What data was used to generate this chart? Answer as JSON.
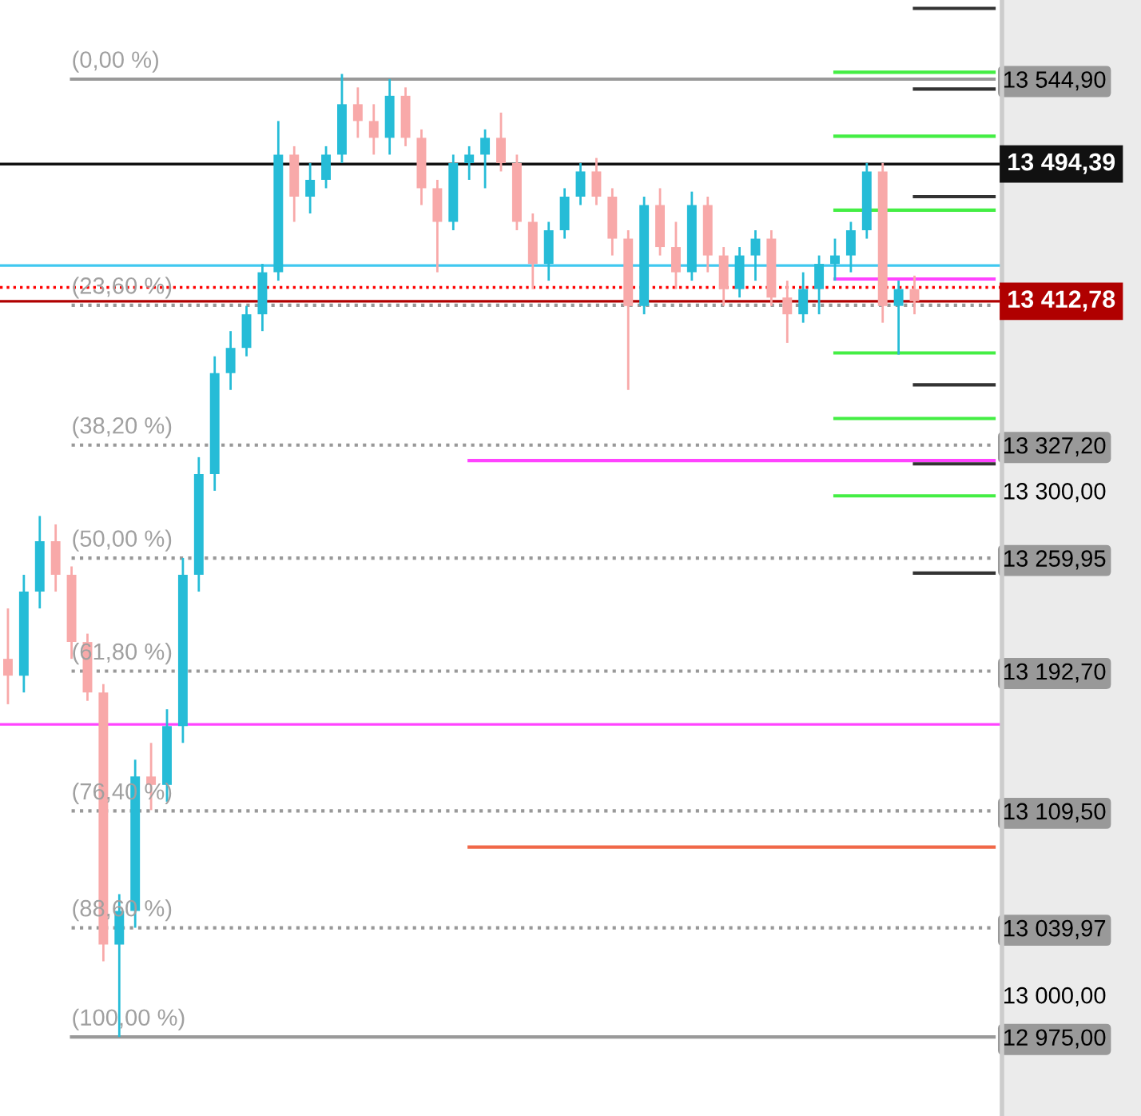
{
  "chart_data": {
    "type": "candlestick",
    "categories": [
      null,
      null,
      null,
      null,
      null,
      null,
      null,
      null,
      null,
      null,
      null,
      null,
      null,
      null,
      null,
      null,
      null,
      null,
      null,
      null,
      null,
      null,
      null,
      null,
      null,
      null,
      null,
      null,
      null,
      null,
      null,
      null,
      null,
      null,
      null,
      null,
      null,
      null,
      null,
      null,
      null,
      null,
      null,
      null,
      null,
      null,
      null,
      null,
      null,
      null,
      null,
      null,
      null,
      null,
      null,
      null,
      null,
      null,
      null,
      null,
      null,
      null,
      null
    ],
    "ohlc": [
      [
        13200,
        13230,
        13173,
        13190
      ],
      [
        13190,
        13250,
        13180,
        13240
      ],
      [
        13240,
        13285,
        13230,
        13270
      ],
      [
        13270,
        13280,
        13240,
        13250
      ],
      [
        13250,
        13255,
        13200,
        13210
      ],
      [
        13210,
        13215,
        13175,
        13180
      ],
      [
        13180,
        13185,
        13020,
        13030
      ],
      [
        13030,
        13060,
        12975,
        13050
      ],
      [
        13050,
        13140,
        13040,
        13130
      ],
      [
        13130,
        13150,
        13110,
        13125
      ],
      [
        13125,
        13170,
        13115,
        13160
      ],
      [
        13160,
        13260,
        13150,
        13250
      ],
      [
        13250,
        13320,
        13240,
        13310
      ],
      [
        13310,
        13380,
        13300,
        13370
      ],
      [
        13370,
        13395,
        13360,
        13385
      ],
      [
        13385,
        13410,
        13380,
        13405
      ],
      [
        13405,
        13435,
        13395,
        13430
      ],
      [
        13430,
        13520,
        13425,
        13500
      ],
      [
        13500,
        13505,
        13460,
        13475
      ],
      [
        13475,
        13495,
        13465,
        13485
      ],
      [
        13485,
        13505,
        13480,
        13500
      ],
      [
        13500,
        13548,
        13495,
        13530
      ],
      [
        13530,
        13540,
        13510,
        13520
      ],
      [
        13520,
        13530,
        13500,
        13510
      ],
      [
        13510,
        13545,
        13500,
        13535
      ],
      [
        13535,
        13540,
        13505,
        13510
      ],
      [
        13510,
        13515,
        13470,
        13480
      ],
      [
        13480,
        13485,
        13430,
        13460
      ],
      [
        13460,
        13500,
        13455,
        13495
      ],
      [
        13495,
        13505,
        13485,
        13500
      ],
      [
        13500,
        13515,
        13480,
        13510
      ],
      [
        13510,
        13525,
        13490,
        13495
      ],
      [
        13495,
        13500,
        13455,
        13460
      ],
      [
        13460,
        13465,
        13420,
        13435
      ],
      [
        13435,
        13460,
        13425,
        13455
      ],
      [
        13455,
        13480,
        13450,
        13475
      ],
      [
        13475,
        13495,
        13470,
        13490
      ],
      [
        13490,
        13498,
        13470,
        13475
      ],
      [
        13475,
        13480,
        13440,
        13450
      ],
      [
        13450,
        13455,
        13360,
        13410
      ],
      [
        13410,
        13475,
        13405,
        13470
      ],
      [
        13470,
        13480,
        13440,
        13445
      ],
      [
        13445,
        13460,
        13420,
        13430
      ],
      [
        13430,
        13478,
        13425,
        13470
      ],
      [
        13470,
        13475,
        13430,
        13440
      ],
      [
        13440,
        13445,
        13410,
        13420
      ],
      [
        13420,
        13445,
        13415,
        13440
      ],
      [
        13440,
        13455,
        13425,
        13450
      ],
      [
        13450,
        13455,
        13410,
        13415
      ],
      [
        13415,
        13425,
        13388,
        13405
      ],
      [
        13405,
        13430,
        13400,
        13420
      ],
      [
        13420,
        13440,
        13405,
        13435
      ],
      [
        13435,
        13450,
        13425,
        13440
      ],
      [
        13440,
        13460,
        13430,
        13455
      ],
      [
        13455,
        13495,
        13450,
        13490
      ],
      [
        13490,
        13495,
        13400,
        13410
      ],
      [
        13410,
        13425,
        13381,
        13420
      ],
      [
        13420,
        13428,
        13405,
        13412.78
      ],
      null,
      null,
      null,
      null,
      null
    ],
    "colors": [
      "#f8a9a9",
      "#26bcd7",
      "#26bcd7",
      "#f8a9a9",
      "#f8a9a9",
      "#f8a9a9",
      "#f8a9a9",
      "#26bcd7",
      "#26bcd7",
      "#f8a9a9",
      "#26bcd7",
      "#26bcd7",
      "#26bcd7",
      "#26bcd7",
      "#26bcd7",
      "#26bcd7",
      "#26bcd7",
      "#26bcd7",
      "#f8a9a9",
      "#26bcd7",
      "#26bcd7",
      "#26bcd7",
      "#f8a9a9",
      "#f8a9a9",
      "#26bcd7",
      "#f8a9a9",
      "#f8a9a9",
      "#f8a9a9",
      "#26bcd7",
      "#26bcd7",
      "#26bcd7",
      "#f8a9a9",
      "#f8a9a9",
      "#f8a9a9",
      "#26bcd7",
      "#26bcd7",
      "#26bcd7",
      "#f8a9a9",
      "#f8a9a9",
      "#f8a9a9",
      "#26bcd7",
      "#f8a9a9",
      "#f8a9a9",
      "#26bcd7",
      "#f8a9a9",
      "#f8a9a9",
      "#26bcd7",
      "#26bcd7",
      "#f8a9a9",
      "#f8a9a9",
      "#26bcd7",
      "#26bcd7",
      "#26bcd7",
      "#26bcd7",
      "#26bcd7",
      "#f8a9a9",
      "#26bcd7",
      "#f8a9a9",
      null,
      null,
      null,
      null,
      null
    ],
    "series": [
      {
        "type": "line",
        "name": "(0,00 %)",
        "color": "#999999",
        "line_style": "solid",
        "values": [
          null,
          null,
          null,
          null,
          13544.9,
          13544.9,
          13544.9,
          13544.9,
          13544.9,
          13544.9,
          13544.9,
          13544.9,
          13544.9,
          13544.9,
          13544.9,
          13544.9,
          13544.9,
          13544.9,
          13544.9,
          13544.9,
          13544.9,
          13544.9,
          13544.9,
          13544.9,
          13544.9,
          13544.9,
          13544.9,
          13544.9,
          13544.9,
          13544.9,
          13544.9,
          13544.9,
          13544.9,
          13544.9,
          13544.9,
          13544.9,
          13544.9,
          13544.9,
          13544.9,
          13544.9,
          13544.9,
          13544.9,
          13544.9,
          13544.9,
          13544.9,
          13544.9,
          13544.9,
          13544.9,
          13544.9,
          13544.9,
          13544.9,
          13544.9,
          13544.9,
          13544.9,
          13544.9,
          13544.9,
          13544.9,
          13544.9,
          13544.9,
          13544.9,
          13544.9,
          13544.9,
          13544.9
        ]
      },
      {
        "type": "line",
        "name": "(23,60 %)",
        "color": "#999999",
        "line_style": "dotted",
        "values": [
          null,
          null,
          null,
          null,
          13410.4,
          13410.4,
          13410.4,
          13410.4,
          13410.4,
          13410.4,
          13410.4,
          13410.4,
          13410.4,
          13410.4,
          13410.4,
          13410.4,
          13410.4,
          13410.4,
          13410.4,
          13410.4,
          13410.4,
          13410.4,
          13410.4,
          13410.4,
          13410.4,
          13410.4,
          13410.4,
          13410.4,
          13410.4,
          13410.4,
          13410.4,
          13410.4,
          13410.4,
          13410.4,
          13410.4,
          13410.4,
          13410.4,
          13410.4,
          13410.4,
          13410.4,
          13410.4,
          13410.4,
          13410.4,
          13410.4,
          13410.4,
          13410.4,
          13410.4,
          13410.4,
          13410.4,
          13410.4,
          13410.4,
          13410.4,
          13410.4,
          13410.4,
          13410.4,
          13410.4,
          13410.4,
          13410.4,
          13410.4,
          13410.4,
          13410.4,
          13410.4,
          13410.4
        ]
      },
      {
        "type": "line",
        "name": "(38,20 %)",
        "color": "#999999",
        "line_style": "dotted",
        "values": [
          null,
          null,
          null,
          null,
          13327.2,
          13327.2,
          13327.2,
          13327.2,
          13327.2,
          13327.2,
          13327.2,
          13327.2,
          13327.2,
          13327.2,
          13327.2,
          13327.2,
          13327.2,
          13327.2,
          13327.2,
          13327.2,
          13327.2,
          13327.2,
          13327.2,
          13327.2,
          13327.2,
          13327.2,
          13327.2,
          13327.2,
          13327.2,
          13327.2,
          13327.2,
          13327.2,
          13327.2,
          13327.2,
          13327.2,
          13327.2,
          13327.2,
          13327.2,
          13327.2,
          13327.2,
          13327.2,
          13327.2,
          13327.2,
          13327.2,
          13327.2,
          13327.2,
          13327.2,
          13327.2,
          13327.2,
          13327.2,
          13327.2,
          13327.2,
          13327.2,
          13327.2,
          13327.2,
          13327.2,
          13327.2,
          13327.2,
          13327.2,
          13327.2,
          13327.2,
          13327.2,
          13327.2
        ]
      },
      {
        "type": "line",
        "name": "(50,00 %)",
        "color": "#999999",
        "line_style": "dotted",
        "values": [
          null,
          null,
          null,
          null,
          13259.95,
          13259.95,
          13259.95,
          13259.95,
          13259.95,
          13259.95,
          13259.95,
          13259.95,
          13259.95,
          13259.95,
          13259.95,
          13259.95,
          13259.95,
          13259.95,
          13259.95,
          13259.95,
          13259.95,
          13259.95,
          13259.95,
          13259.95,
          13259.95,
          13259.95,
          13259.95,
          13259.95,
          13259.95,
          13259.95,
          13259.95,
          13259.95,
          13259.95,
          13259.95,
          13259.95,
          13259.95,
          13259.95,
          13259.95,
          13259.95,
          13259.95,
          13259.95,
          13259.95,
          13259.95,
          13259.95,
          13259.95,
          13259.95,
          13259.95,
          13259.95,
          13259.95,
          13259.95,
          13259.95,
          13259.95,
          13259.95,
          13259.95,
          13259.95,
          13259.95,
          13259.95,
          13259.95,
          13259.95,
          13259.95,
          13259.95,
          13259.95,
          13259.95
        ]
      },
      {
        "type": "line",
        "name": "(61,80 %)",
        "color": "#999999",
        "line_style": "dotted",
        "values": [
          null,
          null,
          null,
          null,
          13192.7,
          13192.7,
          13192.7,
          13192.7,
          13192.7,
          13192.7,
          13192.7,
          13192.7,
          13192.7,
          13192.7,
          13192.7,
          13192.7,
          13192.7,
          13192.7,
          13192.7,
          13192.7,
          13192.7,
          13192.7,
          13192.7,
          13192.7,
          13192.7,
          13192.7,
          13192.7,
          13192.7,
          13192.7,
          13192.7,
          13192.7,
          13192.7,
          13192.7,
          13192.7,
          13192.7,
          13192.7,
          13192.7,
          13192.7,
          13192.7,
          13192.7,
          13192.7,
          13192.7,
          13192.7,
          13192.7,
          13192.7,
          13192.7,
          13192.7,
          13192.7,
          13192.7,
          13192.7,
          13192.7,
          13192.7,
          13192.7,
          13192.7,
          13192.7,
          13192.7,
          13192.7,
          13192.7,
          13192.7,
          13192.7,
          13192.7,
          13192.7,
          13192.7
        ]
      },
      {
        "type": "line",
        "name": "(76,40 %)",
        "color": "#999999",
        "line_style": "dotted",
        "values": [
          null,
          null,
          null,
          null,
          13109.5,
          13109.5,
          13109.5,
          13109.5,
          13109.5,
          13109.5,
          13109.5,
          13109.5,
          13109.5,
          13109.5,
          13109.5,
          13109.5,
          13109.5,
          13109.5,
          13109.5,
          13109.5,
          13109.5,
          13109.5,
          13109.5,
          13109.5,
          13109.5,
          13109.5,
          13109.5,
          13109.5,
          13109.5,
          13109.5,
          13109.5,
          13109.5,
          13109.5,
          13109.5,
          13109.5,
          13109.5,
          13109.5,
          13109.5,
          13109.5,
          13109.5,
          13109.5,
          13109.5,
          13109.5,
          13109.5,
          13109.5,
          13109.5,
          13109.5,
          13109.5,
          13109.5,
          13109.5,
          13109.5,
          13109.5,
          13109.5,
          13109.5,
          13109.5,
          13109.5,
          13109.5,
          13109.5,
          13109.5,
          13109.5,
          13109.5,
          13109.5,
          13109.5
        ]
      },
      {
        "type": "line",
        "name": "(88,60 %)",
        "color": "#999999",
        "line_style": "dotted",
        "values": [
          null,
          null,
          null,
          null,
          13039.97,
          13039.97,
          13039.97,
          13039.97,
          13039.97,
          13039.97,
          13039.97,
          13039.97,
          13039.97,
          13039.97,
          13039.97,
          13039.97,
          13039.97,
          13039.97,
          13039.97,
          13039.97,
          13039.97,
          13039.97,
          13039.97,
          13039.97,
          13039.97,
          13039.97,
          13039.97,
          13039.97,
          13039.97,
          13039.97,
          13039.97,
          13039.97,
          13039.97,
          13039.97,
          13039.97,
          13039.97,
          13039.97,
          13039.97,
          13039.97,
          13039.97,
          13039.97,
          13039.97,
          13039.97,
          13039.97,
          13039.97,
          13039.97,
          13039.97,
          13039.97,
          13039.97,
          13039.97,
          13039.97,
          13039.97,
          13039.97,
          13039.97,
          13039.97,
          13039.97,
          13039.97,
          13039.97,
          13039.97,
          13039.97,
          13039.97,
          13039.97,
          13039.97
        ]
      },
      {
        "type": "line",
        "name": "(100,00 %)",
        "color": "#999999",
        "line_style": "solid",
        "values": [
          null,
          null,
          null,
          null,
          12975,
          12975,
          12975,
          12975,
          12975,
          12975,
          12975,
          12975,
          12975,
          12975,
          12975,
          12975,
          12975,
          12975,
          12975,
          12975,
          12975,
          12975,
          12975,
          12975,
          12975,
          12975,
          12975,
          12975,
          12975,
          12975,
          12975,
          12975,
          12975,
          12975,
          12975,
          12975,
          12975,
          12975,
          12975,
          12975,
          12975,
          12975,
          12975,
          12975,
          12975,
          12975,
          12975,
          12975,
          12975,
          12975,
          12975,
          12975,
          12975,
          12975,
          12975,
          12975,
          12975,
          12975,
          12975,
          12975,
          12975,
          12975,
          12975
        ]
      },
      {
        "type": "line",
        "color": "#ff44ff",
        "line_style": "solid",
        "values": [
          null,
          null,
          null,
          null,
          null,
          null,
          null,
          null,
          null,
          null,
          null,
          null,
          null,
          null,
          null,
          null,
          null,
          null,
          null,
          null,
          null,
          null,
          null,
          null,
          null,
          null,
          null,
          null,
          null,
          13318,
          13318,
          13318,
          13318,
          13318,
          13318,
          13318,
          13318,
          13318,
          13318,
          13318,
          13318,
          13318,
          13318,
          13318,
          13318,
          13318,
          13318,
          13318,
          13318,
          13318,
          13318,
          13318,
          13318,
          13318,
          13318,
          13318,
          13318,
          13318,
          13318,
          13318,
          13318,
          13318,
          13318
        ]
      },
      {
        "type": "line",
        "color": "#f06848",
        "line_style": "solid",
        "values": [
          null,
          null,
          null,
          null,
          null,
          null,
          null,
          null,
          null,
          null,
          null,
          null,
          null,
          null,
          null,
          null,
          null,
          null,
          null,
          null,
          null,
          null,
          null,
          null,
          null,
          null,
          null,
          null,
          null,
          13088,
          13088,
          13088,
          13088,
          13088,
          13088,
          13088,
          13088,
          13088,
          13088,
          13088,
          13088,
          13088,
          13088,
          13088,
          13088,
          13088,
          13088,
          13088,
          13088,
          13088,
          13088,
          13088,
          13088,
          13088,
          13088,
          13088,
          13088,
          13088,
          13088,
          13088,
          13088,
          13088,
          13088
        ]
      },
      {
        "type": "line",
        "color": "#ff44ff",
        "line_style": "solid",
        "values": [
          null,
          null,
          null,
          null,
          null,
          null,
          null,
          null,
          null,
          null,
          null,
          null,
          null,
          null,
          null,
          null,
          null,
          null,
          null,
          null,
          null,
          null,
          null,
          null,
          null,
          null,
          null,
          null,
          null,
          null,
          null,
          null,
          null,
          null,
          null,
          null,
          null,
          null,
          null,
          null,
          null,
          null,
          null,
          null,
          null,
          null,
          null,
          null,
          null,
          null,
          null,
          null,
          13426,
          13426,
          13426,
          13426,
          13426,
          13426,
          13426,
          13426,
          13426,
          13426,
          13426
        ]
      },
      {
        "type": "line",
        "color": "#44ee44",
        "line_style": "solid",
        "values": [
          null,
          null,
          null,
          null,
          null,
          null,
          null,
          null,
          null,
          null,
          null,
          null,
          null,
          null,
          null,
          null,
          null,
          null,
          null,
          null,
          null,
          null,
          null,
          null,
          null,
          null,
          null,
          null,
          null,
          null,
          null,
          null,
          null,
          null,
          null,
          null,
          null,
          null,
          null,
          null,
          null,
          null,
          null,
          null,
          null,
          null,
          null,
          null,
          null,
          null,
          null,
          null,
          13549,
          13549,
          13549,
          13549,
          13549,
          13549,
          13549,
          13549,
          13549,
          13549,
          13549
        ]
      },
      {
        "type": "line",
        "color": "#44ee44",
        "line_style": "solid",
        "values": [
          null,
          null,
          null,
          null,
          null,
          null,
          null,
          null,
          null,
          null,
          null,
          null,
          null,
          null,
          null,
          null,
          null,
          null,
          null,
          null,
          null,
          null,
          null,
          null,
          null,
          null,
          null,
          null,
          null,
          null,
          null,
          null,
          null,
          null,
          null,
          null,
          null,
          null,
          null,
          null,
          null,
          null,
          null,
          null,
          null,
          null,
          null,
          null,
          null,
          null,
          null,
          null,
          13511,
          13511,
          13511,
          13511,
          13511,
          13511,
          13511,
          13511,
          13511,
          13511,
          13511
        ]
      },
      {
        "type": "line",
        "color": "#44ee44",
        "line_style": "solid",
        "values": [
          null,
          null,
          null,
          null,
          null,
          null,
          null,
          null,
          null,
          null,
          null,
          null,
          null,
          null,
          null,
          null,
          null,
          null,
          null,
          null,
          null,
          null,
          null,
          null,
          null,
          null,
          null,
          null,
          null,
          null,
          null,
          null,
          null,
          null,
          null,
          null,
          null,
          null,
          null,
          null,
          null,
          null,
          null,
          null,
          null,
          null,
          null,
          null,
          null,
          null,
          null,
          null,
          13467,
          13467,
          13467,
          13467,
          13467,
          13467,
          13467,
          13467,
          13467,
          13467,
          13467
        ]
      },
      {
        "type": "line",
        "color": "#44ee44",
        "line_style": "solid",
        "values": [
          null,
          null,
          null,
          null,
          null,
          null,
          null,
          null,
          null,
          null,
          null,
          null,
          null,
          null,
          null,
          null,
          null,
          null,
          null,
          null,
          null,
          null,
          null,
          null,
          null,
          null,
          null,
          null,
          null,
          null,
          null,
          null,
          null,
          null,
          null,
          null,
          null,
          null,
          null,
          null,
          null,
          null,
          null,
          null,
          null,
          null,
          null,
          null,
          null,
          null,
          null,
          null,
          13382,
          13382,
          13382,
          13382,
          13382,
          13382,
          13382,
          13382,
          13382,
          13382,
          13382
        ]
      },
      {
        "type": "line",
        "color": "#44ee44",
        "line_style": "solid",
        "values": [
          null,
          null,
          null,
          null,
          null,
          null,
          null,
          null,
          null,
          null,
          null,
          null,
          null,
          null,
          null,
          null,
          null,
          null,
          null,
          null,
          null,
          null,
          null,
          null,
          null,
          null,
          null,
          null,
          null,
          null,
          null,
          null,
          null,
          null,
          null,
          null,
          null,
          null,
          null,
          null,
          null,
          null,
          null,
          null,
          null,
          null,
          null,
          null,
          null,
          null,
          null,
          null,
          13343,
          13343,
          13343,
          13343,
          13343,
          13343,
          13343,
          13343,
          13343,
          13343,
          13343
        ]
      },
      {
        "type": "line",
        "color": "#44ee44",
        "line_style": "solid",
        "values": [
          null,
          null,
          null,
          null,
          null,
          null,
          null,
          null,
          null,
          null,
          null,
          null,
          null,
          null,
          null,
          null,
          null,
          null,
          null,
          null,
          null,
          null,
          null,
          null,
          null,
          null,
          null,
          null,
          null,
          null,
          null,
          null,
          null,
          null,
          null,
          null,
          null,
          null,
          null,
          null,
          null,
          null,
          null,
          null,
          null,
          null,
          null,
          null,
          null,
          null,
          null,
          null,
          13297,
          13297,
          13297,
          13297,
          13297,
          13297,
          13297,
          13297,
          13297,
          13297,
          13297
        ]
      },
      {
        "type": "line",
        "color": "#333333",
        "line_style": "solid",
        "values": [
          null,
          null,
          null,
          null,
          null,
          null,
          null,
          null,
          null,
          null,
          null,
          null,
          null,
          null,
          null,
          null,
          null,
          null,
          null,
          null,
          null,
          null,
          null,
          null,
          null,
          null,
          null,
          null,
          null,
          null,
          null,
          null,
          null,
          null,
          null,
          null,
          null,
          null,
          null,
          null,
          null,
          null,
          null,
          null,
          null,
          null,
          null,
          null,
          null,
          null,
          null,
          null,
          null,
          null,
          null,
          null,
          null,
          13587,
          13587,
          13587,
          13587,
          13587,
          13587
        ]
      },
      {
        "type": "line",
        "color": "#333333",
        "line_style": "solid",
        "values": [
          null,
          null,
          null,
          null,
          null,
          null,
          null,
          null,
          null,
          null,
          null,
          null,
          null,
          null,
          null,
          null,
          null,
          null,
          null,
          null,
          null,
          null,
          null,
          null,
          null,
          null,
          null,
          null,
          null,
          null,
          null,
          null,
          null,
          null,
          null,
          null,
          null,
          null,
          null,
          null,
          null,
          null,
          null,
          null,
          null,
          null,
          null,
          null,
          null,
          null,
          null,
          null,
          null,
          null,
          null,
          null,
          null,
          13539,
          13539,
          13539,
          13539,
          13539,
          13539
        ]
      },
      {
        "type": "line",
        "color": "#333333",
        "line_style": "solid",
        "values": [
          null,
          null,
          null,
          null,
          null,
          null,
          null,
          null,
          null,
          null,
          null,
          null,
          null,
          null,
          null,
          null,
          null,
          null,
          null,
          null,
          null,
          null,
          null,
          null,
          null,
          null,
          null,
          null,
          null,
          null,
          null,
          null,
          null,
          null,
          null,
          null,
          null,
          null,
          null,
          null,
          null,
          null,
          null,
          null,
          null,
          null,
          null,
          null,
          null,
          null,
          null,
          null,
          null,
          null,
          null,
          null,
          null,
          13475,
          13475,
          13475,
          13475,
          13475,
          13475
        ]
      },
      {
        "type": "line",
        "color": "#333333",
        "line_style": "solid",
        "values": [
          null,
          null,
          null,
          null,
          null,
          null,
          null,
          null,
          null,
          null,
          null,
          null,
          null,
          null,
          null,
          null,
          null,
          null,
          null,
          null,
          null,
          null,
          null,
          null,
          null,
          null,
          null,
          null,
          null,
          null,
          null,
          null,
          null,
          null,
          null,
          null,
          null,
          null,
          null,
          null,
          null,
          null,
          null,
          null,
          null,
          null,
          null,
          null,
          null,
          null,
          null,
          null,
          null,
          null,
          null,
          null,
          null,
          13363,
          13363,
          13363,
          13363,
          13363,
          13363
        ]
      },
      {
        "type": "line",
        "color": "#333333",
        "line_style": "solid",
        "values": [
          null,
          null,
          null,
          null,
          null,
          null,
          null,
          null,
          null,
          null,
          null,
          null,
          null,
          null,
          null,
          null,
          null,
          null,
          null,
          null,
          null,
          null,
          null,
          null,
          null,
          null,
          null,
          null,
          null,
          null,
          null,
          null,
          null,
          null,
          null,
          null,
          null,
          null,
          null,
          null,
          null,
          null,
          null,
          null,
          null,
          null,
          null,
          null,
          null,
          null,
          null,
          null,
          null,
          null,
          null,
          null,
          null,
          13316,
          13316,
          13316,
          13316,
          13316,
          13316
        ]
      },
      {
        "type": "line",
        "color": "#333333",
        "line_style": "solid",
        "values": [
          null,
          null,
          null,
          null,
          null,
          null,
          null,
          null,
          null,
          null,
          null,
          null,
          null,
          null,
          null,
          null,
          null,
          null,
          null,
          null,
          null,
          null,
          null,
          null,
          null,
          null,
          null,
          null,
          null,
          null,
          null,
          null,
          null,
          null,
          null,
          null,
          null,
          null,
          null,
          null,
          null,
          null,
          null,
          null,
          null,
          null,
          null,
          null,
          null,
          null,
          null,
          null,
          null,
          null,
          null,
          null,
          null,
          13251,
          13251,
          13251,
          13251,
          13251,
          13251
        ]
      }
    ],
    "ref_lines": [
      {
        "axis": "y",
        "value": 13434,
        "color": "#40c8f0",
        "line_style": "solid"
      },
      {
        "axis": "y",
        "value": 13421,
        "color": "#ff0000",
        "line_style": "dotted"
      },
      {
        "axis": "y",
        "value": 13161,
        "color": "#ff44ff",
        "line_style": "solid"
      },
      {
        "axis": "y",
        "value": 13494.39,
        "label": "13 494,39",
        "color": "#111111",
        "line_style": "solid"
      },
      {
        "axis": "y",
        "value": 13412.78,
        "label": "13 412,78",
        "color": "#b00000",
        "line_style": "solid"
      }
    ],
    "ylim": [
      12928,
      13592
    ],
    "yticks": [
      {
        "value": 13000,
        "label": "13 000,00"
      },
      {
        "value": 13300,
        "label": "13 300,00"
      },
      {
        "value": 13544.9,
        "label": "13 544,90"
      },
      {
        "value": 13327.2,
        "label": "13 327,20"
      },
      {
        "value": 13259.95,
        "label": "13 259,95"
      },
      {
        "value": 13192.7,
        "label": "13 192,70"
      },
      {
        "value": 13109.5,
        "label": "13 109,50"
      },
      {
        "value": 13039.97,
        "label": "13 039,97"
      },
      {
        "value": 12975,
        "label": "12 975,00"
      }
    ],
    "tick_labels": "y",
    "grid": false,
    "legend": false
  }
}
